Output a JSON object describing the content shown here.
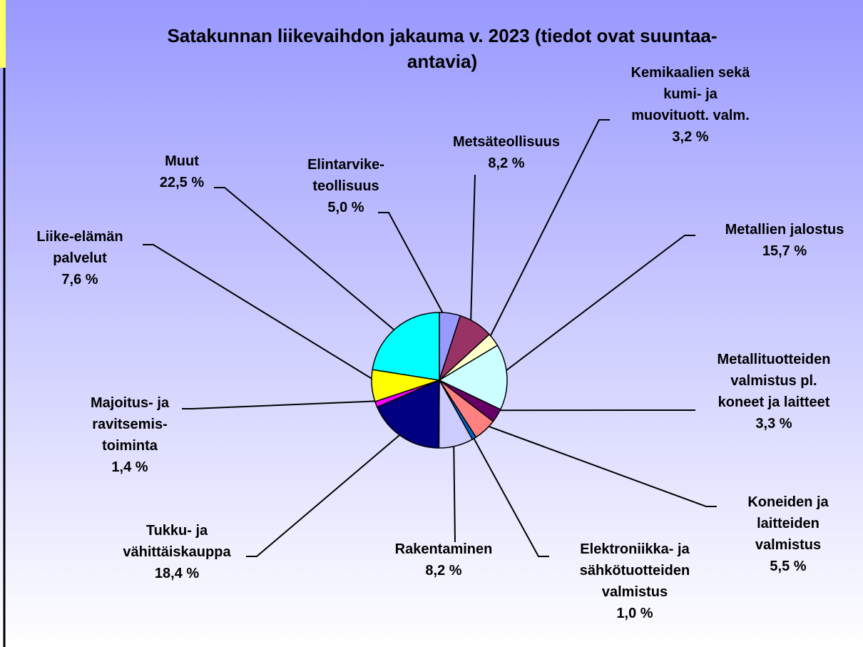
{
  "chart_data": {
    "type": "pie",
    "title": "Satakunnan liikevaihdon jakauma v. 2023 (tiedot ovat suuntaa-\nantavia)",
    "categories": [
      "Elintarvike-\nteollisuus",
      "Metsäteollisuus",
      "Kemikaalien sekä\nkumi- ja\nmuovituott. valm.",
      "Metallien jalostus",
      "Metallituotteiden\nvalmistus pl.\nkoneet ja laitteet",
      "Koneiden ja\nlaitteiden\nvalmistus",
      "Elektroniikka- ja\nsähkötuotteiden\nvalmistus",
      "Rakentaminen",
      "Tukku- ja\nvähittäiskauppa",
      "Majoitus- ja\nravitsemis-\ntoiminta",
      "Liike-elämän\npalvelut",
      "Muut"
    ],
    "values": [
      5.0,
      8.2,
      3.2,
      15.7,
      3.3,
      5.5,
      1.0,
      8.2,
      18.4,
      1.4,
      7.6,
      22.5
    ],
    "value_labels": [
      "5,0 %",
      "8,2 %",
      "3,2 %",
      "15,7 %",
      "3,3 %",
      "5,5 %",
      "1,0 %",
      "8,2 %",
      "18,4 %",
      "1,4 %",
      "7,6 %",
      "22,5 %"
    ],
    "colors": [
      "#9999ff",
      "#993366",
      "#ffffcc",
      "#ccffff",
      "#660066",
      "#ff8080",
      "#0066cc",
      "#ccccff",
      "#000080",
      "#ff00ff",
      "#ffff00",
      "#00ffff"
    ]
  }
}
